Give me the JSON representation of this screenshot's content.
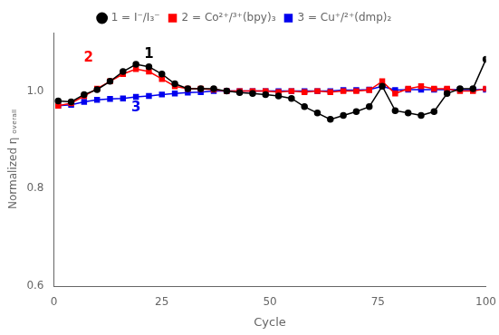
{
  "chart_data": {
    "type": "line",
    "x_label": "Cycle",
    "y_label": "Normalized η ₒᵥₑᵣₐₗₗ",
    "xlim": [
      0,
      100
    ],
    "ylim": [
      0.6,
      1.12
    ],
    "xticks": [
      0,
      25,
      50,
      75,
      100
    ],
    "yticks": [
      0.6,
      0.8,
      {
        "value": 1.0,
        "label": "1.0"
      }
    ],
    "grid": false,
    "legend": "top",
    "series": [
      {
        "name": "1 = I⁻/I₃⁻",
        "color": "#000000",
        "marker": "circle",
        "line_style": "solid",
        "x": [
          1,
          4,
          7,
          10,
          13,
          16,
          19,
          22,
          25,
          28,
          31,
          34,
          37,
          40,
          43,
          46,
          49,
          52,
          55,
          58,
          61,
          64,
          67,
          70,
          73,
          76,
          79,
          82,
          85,
          88,
          91,
          94,
          97,
          100
        ],
        "values": [
          0.98,
          0.978,
          0.993,
          1.003,
          1.02,
          1.04,
          1.055,
          1.05,
          1.035,
          1.015,
          1.005,
          1.005,
          1.005,
          1.0,
          0.997,
          0.995,
          0.993,
          0.99,
          0.985,
          0.968,
          0.955,
          0.942,
          0.95,
          0.958,
          0.968,
          1.01,
          0.96,
          0.955,
          0.95,
          0.958,
          0.995,
          1.005,
          1.005,
          1.065
        ]
      },
      {
        "name": "2 = Co²⁺/³⁺(bpy)₃",
        "color": "#ff0000",
        "marker": "square",
        "line_style": "solid",
        "x": [
          1,
          4,
          7,
          10,
          13,
          16,
          19,
          22,
          25,
          28,
          31,
          34,
          37,
          40,
          43,
          46,
          49,
          52,
          55,
          58,
          61,
          64,
          67,
          70,
          73,
          76,
          79,
          82,
          85,
          88,
          91,
          94,
          97,
          100
        ],
        "values": [
          0.97,
          0.975,
          0.99,
          1.005,
          1.02,
          1.035,
          1.045,
          1.04,
          1.025,
          1.01,
          1.005,
          1.005,
          1.003,
          1.0,
          1.0,
          1.0,
          1.0,
          0.998,
          1.0,
          0.998,
          1.0,
          0.998,
          1.0,
          1.0,
          1.002,
          1.02,
          0.995,
          1.005,
          1.01,
          1.005,
          1.005,
          1.0,
          1.0,
          1.005
        ]
      },
      {
        "name": "3 = Cu⁺/²⁺(dmp)₂",
        "color": "#0000ee",
        "marker": "square",
        "line_style": "solid",
        "x": [
          1,
          4,
          7,
          10,
          13,
          16,
          19,
          22,
          25,
          28,
          31,
          34,
          37,
          40,
          43,
          46,
          49,
          52,
          55,
          58,
          61,
          64,
          67,
          70,
          73,
          76,
          79,
          82,
          85,
          88,
          91,
          94,
          97,
          100
        ],
        "values": [
          0.97,
          0.972,
          0.978,
          0.982,
          0.984,
          0.985,
          0.988,
          0.99,
          0.993,
          0.995,
          0.997,
          0.998,
          1.0,
          1.0,
          1.0,
          1.0,
          1.0,
          1.0,
          1.0,
          1.0,
          1.0,
          1.0,
          1.002,
          1.002,
          1.003,
          1.01,
          1.002,
          1.003,
          1.003,
          1.003,
          1.003,
          1.003,
          1.003,
          1.003
        ]
      }
    ],
    "annotations": [
      {
        "text": "1",
        "x": 22,
        "y": 1.068,
        "color": "#000000"
      },
      {
        "text": "2",
        "x": 8,
        "y": 1.06,
        "color": "#ff0000"
      },
      {
        "text": "3",
        "x": 19,
        "y": 0.958,
        "color": "#0000ee"
      }
    ]
  }
}
